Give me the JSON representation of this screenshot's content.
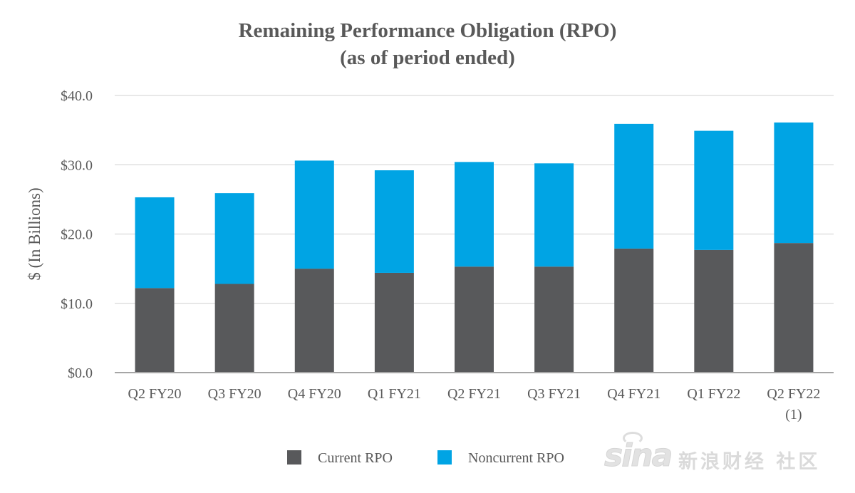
{
  "chart_data": {
    "type": "bar",
    "stacked": true,
    "title": "Remaining Performance Obligation (RPO)",
    "subtitle": "(as of period ended)",
    "xlabel": "",
    "ylabel": "$ (In Billions)",
    "ylim": [
      0,
      40
    ],
    "yticks": [
      0,
      10,
      20,
      30,
      40
    ],
    "ytick_labels": [
      "$0.0",
      "$10.0",
      "$20.0",
      "$30.0",
      "$40.0"
    ],
    "grid": true,
    "legend_position": "bottom",
    "categories": [
      "Q2 FY20",
      "Q3 FY20",
      "Q4 FY20",
      "Q1 FY21",
      "Q2 FY21",
      "Q3 FY21",
      "Q4 FY21",
      "Q1 FY22",
      "Q2 FY22"
    ],
    "category_footnotes": [
      "",
      "",
      "",
      "",
      "",
      "",
      "",
      "",
      "(1)"
    ],
    "series": [
      {
        "name": "Current RPO",
        "color": "#58595b",
        "values": [
          12.2,
          12.8,
          15.0,
          14.4,
          15.3,
          15.3,
          17.9,
          17.7,
          18.7
        ]
      },
      {
        "name": "Noncurrent RPO",
        "color": "#00a4e4",
        "values": [
          13.1,
          13.1,
          15.6,
          14.8,
          15.1,
          14.9,
          18.0,
          17.2,
          17.4
        ]
      }
    ]
  },
  "watermark": {
    "logo_text": "sina",
    "text": "新浪财经 社区"
  }
}
